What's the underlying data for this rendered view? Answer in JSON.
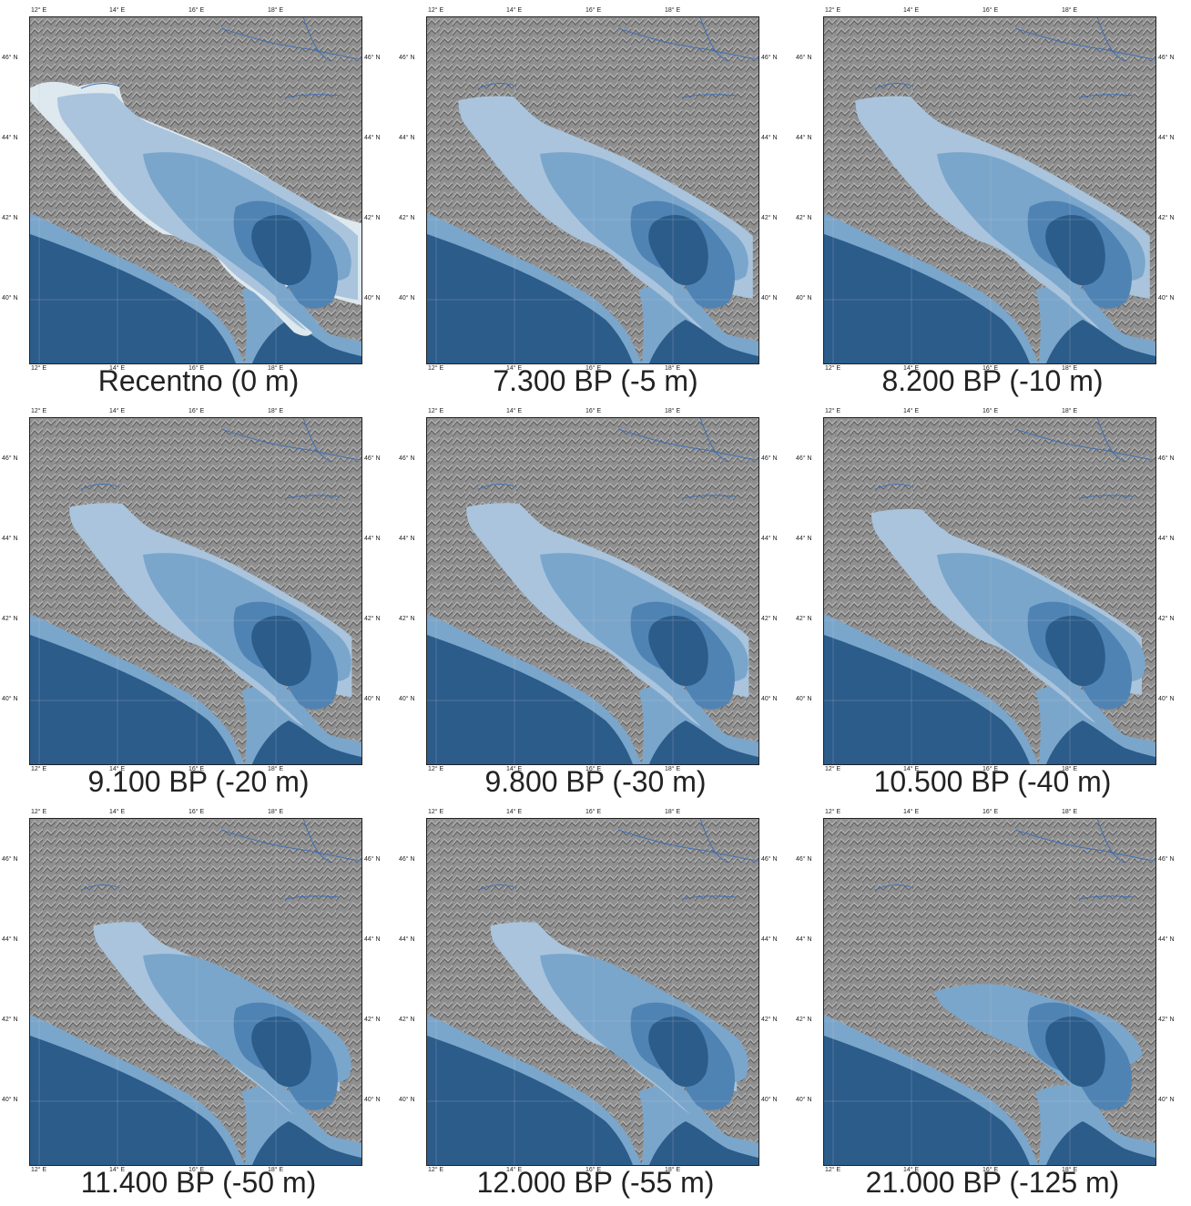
{
  "colors": {
    "land": "#8f8f8f",
    "land_highlight": "#b3b3b3",
    "land_shadow": "#5f5f5f",
    "deep_sea": "#2b5c8a",
    "mid_sea": "#4f83b3",
    "shelf_sea": "#7aa6cc",
    "shallow_sea": "#a9c4dc",
    "coastal_flat": "#dde8ef",
    "rivers": "#3e6fb4"
  },
  "axes": {
    "lon_ticks": [
      "12° E",
      "14° E",
      "16° E",
      "18° E"
    ],
    "lat_ticks": [
      "46° N",
      "44° N",
      "42° N",
      "40° N"
    ]
  },
  "panels": [
    {
      "caption": "Recentno (0 m)",
      "age_bp": 0,
      "sea_level_m": 0
    },
    {
      "caption": "7.300 BP (-5 m)",
      "age_bp": 7300,
      "sea_level_m": -5
    },
    {
      "caption": "8.200 BP (-10 m)",
      "age_bp": 8200,
      "sea_level_m": -10
    },
    {
      "caption": "9.100 BP (-20 m)",
      "age_bp": 9100,
      "sea_level_m": -20
    },
    {
      "caption": "9.800 BP (-30 m)",
      "age_bp": 9800,
      "sea_level_m": -30
    },
    {
      "caption": "10.500 BP (-40 m)",
      "age_bp": 10500,
      "sea_level_m": -40
    },
    {
      "caption": "11.400 BP (-50 m)",
      "age_bp": 11400,
      "sea_level_m": -50
    },
    {
      "caption": "12.000 BP (-55 m)",
      "age_bp": 12000,
      "sea_level_m": -55
    },
    {
      "caption": "21.000 BP (-125 m)",
      "age_bp": 21000,
      "sea_level_m": -125
    }
  ]
}
